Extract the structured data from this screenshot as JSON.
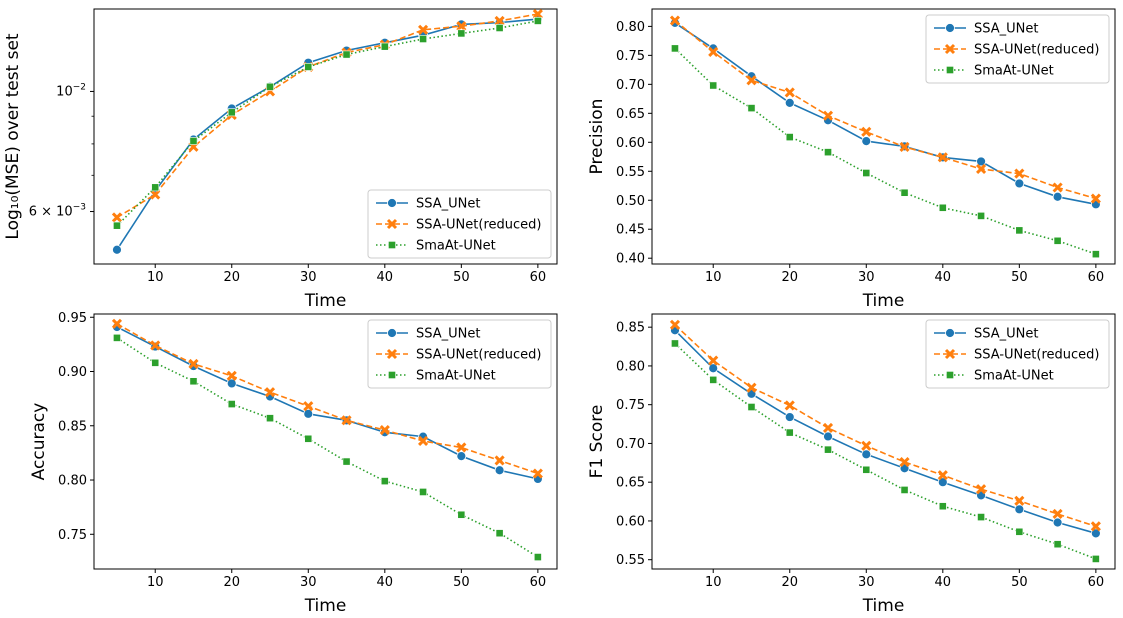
{
  "x_ticks": [
    10,
    20,
    30,
    40,
    50,
    60
  ],
  "series_styles": [
    {
      "name": "SSA_UNet",
      "color": "#1f77b4",
      "dash": "",
      "marker": "circle"
    },
    {
      "name": "SSA-UNet(reduced)",
      "color": "#ff7f0e",
      "dash": "6 3",
      "marker": "x"
    },
    {
      "name": "SmaAt-UNet",
      "color": "#2ca02c",
      "dash": "1.5 2.5",
      "marker": "square"
    }
  ],
  "chart_data": [
    {
      "type": "line",
      "id": "mse",
      "xlabel": "Time",
      "ylabel": "Log₁₀(MSE) over test set",
      "yscale": "log",
      "ylim": [
        0.0048,
        0.0142
      ],
      "xlim": [
        2.0,
        62.5
      ],
      "y_ticks": [
        {
          "value": 0.01,
          "base": "10",
          "exp": "−2"
        },
        {
          "value": 0.006,
          "label": "6 × 10",
          "exp": "−3"
        }
      ],
      "y_minor_ticks": [
        0.007,
        0.008,
        0.009
      ],
      "legend_position": "lower-right",
      "x": [
        5,
        10,
        15,
        20,
        25,
        30,
        35,
        40,
        45,
        50,
        55,
        60
      ],
      "series": [
        {
          "name": "SSA_UNet",
          "values": [
            0.0051,
            0.00655,
            0.00815,
            0.0093,
            0.0102,
            0.0113,
            0.0119,
            0.0123,
            0.0127,
            0.0133,
            0.0134,
            0.0136
          ]
        },
        {
          "name": "SSA-UNet(reduced)",
          "values": [
            0.00585,
            0.00645,
            0.0079,
            0.00905,
            0.01,
            0.0111,
            0.0118,
            0.0122,
            0.013,
            0.0132,
            0.0135,
            0.0139
          ]
        },
        {
          "name": "SmaAt-UNet",
          "values": [
            0.00565,
            0.00665,
            0.0081,
            0.00915,
            0.0102,
            0.0111,
            0.0117,
            0.0121,
            0.0125,
            0.0128,
            0.0131,
            0.0135
          ]
        }
      ]
    },
    {
      "type": "line",
      "id": "precision",
      "xlabel": "Time",
      "ylabel": "Precision",
      "yscale": "linear",
      "ylim": [
        0.39,
        0.83
      ],
      "xlim": [
        2.0,
        62.5
      ],
      "y_ticks": [
        0.4,
        0.45,
        0.5,
        0.55,
        0.6,
        0.65,
        0.7,
        0.75,
        0.8
      ],
      "legend_position": "upper-right",
      "x": [
        5,
        10,
        15,
        20,
        25,
        30,
        35,
        40,
        45,
        50,
        55,
        60
      ],
      "series": [
        {
          "name": "SSA_UNet",
          "values": [
            0.806,
            0.762,
            0.714,
            0.668,
            0.638,
            0.602,
            0.593,
            0.574,
            0.567,
            0.529,
            0.506,
            0.493
          ]
        },
        {
          "name": "SSA-UNet(reduced)",
          "values": [
            0.81,
            0.756,
            0.707,
            0.686,
            0.646,
            0.618,
            0.592,
            0.574,
            0.554,
            0.546,
            0.522,
            0.503
          ]
        },
        {
          "name": "SmaAt-UNet",
          "values": [
            0.762,
            0.698,
            0.659,
            0.609,
            0.583,
            0.547,
            0.513,
            0.487,
            0.473,
            0.448,
            0.43,
            0.407
          ]
        }
      ]
    },
    {
      "type": "line",
      "id": "accuracy",
      "xlabel": "Time",
      "ylabel": "Accuracy",
      "yscale": "linear",
      "ylim": [
        0.718,
        0.953
      ],
      "xlim": [
        2.0,
        62.5
      ],
      "y_ticks": [
        0.75,
        0.8,
        0.85,
        0.9,
        0.95
      ],
      "legend_position": "upper-right",
      "x": [
        5,
        10,
        15,
        20,
        25,
        30,
        35,
        40,
        45,
        50,
        55,
        60
      ],
      "series": [
        {
          "name": "SSA_UNet",
          "values": [
            0.941,
            0.923,
            0.905,
            0.889,
            0.877,
            0.861,
            0.855,
            0.844,
            0.84,
            0.822,
            0.809,
            0.801
          ]
        },
        {
          "name": "SSA-UNet(reduced)",
          "values": [
            0.944,
            0.924,
            0.907,
            0.896,
            0.881,
            0.868,
            0.855,
            0.846,
            0.836,
            0.83,
            0.818,
            0.806
          ]
        },
        {
          "name": "SmaAt-UNet",
          "values": [
            0.931,
            0.908,
            0.891,
            0.87,
            0.857,
            0.838,
            0.817,
            0.799,
            0.789,
            0.768,
            0.751,
            0.729
          ]
        }
      ]
    },
    {
      "type": "line",
      "id": "f1",
      "xlabel": "Time",
      "ylabel": "F1 Score",
      "yscale": "linear",
      "ylim": [
        0.538,
        0.867
      ],
      "xlim": [
        2.0,
        62.5
      ],
      "y_ticks": [
        0.55,
        0.6,
        0.65,
        0.7,
        0.75,
        0.8,
        0.85
      ],
      "legend_position": "upper-right",
      "x": [
        5,
        10,
        15,
        20,
        25,
        30,
        35,
        40,
        45,
        50,
        55,
        60
      ],
      "series": [
        {
          "name": "SSA_UNet",
          "values": [
            0.846,
            0.797,
            0.764,
            0.734,
            0.709,
            0.686,
            0.668,
            0.65,
            0.633,
            0.615,
            0.598,
            0.584
          ]
        },
        {
          "name": "SSA-UNet(reduced)",
          "values": [
            0.853,
            0.807,
            0.772,
            0.749,
            0.72,
            0.697,
            0.676,
            0.659,
            0.641,
            0.626,
            0.609,
            0.593
          ]
        },
        {
          "name": "SmaAt-UNet",
          "values": [
            0.829,
            0.782,
            0.747,
            0.714,
            0.692,
            0.666,
            0.64,
            0.619,
            0.605,
            0.586,
            0.57,
            0.551
          ]
        }
      ]
    }
  ]
}
